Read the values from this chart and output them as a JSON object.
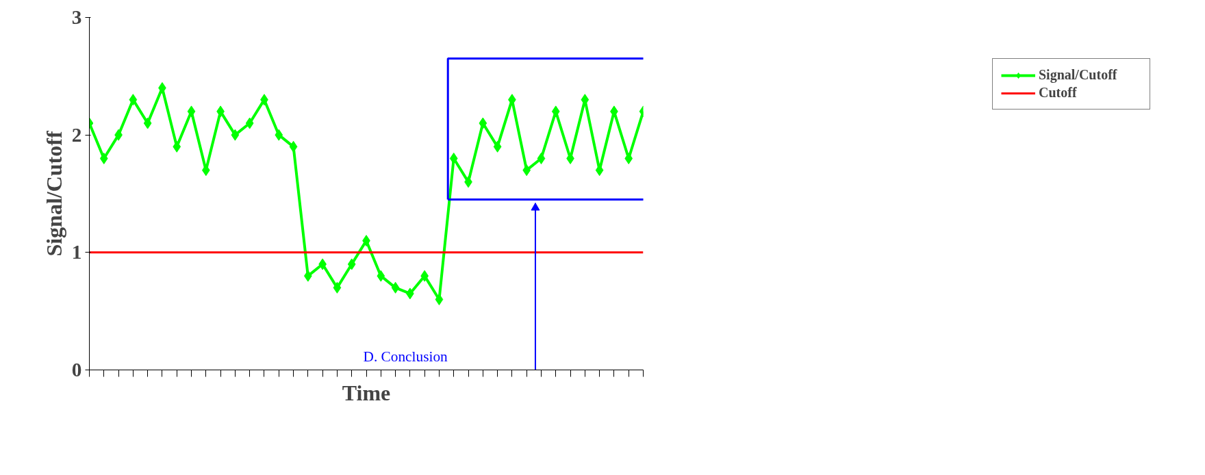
{
  "chart_data": {
    "type": "line",
    "xlabel": "Time",
    "ylabel": "Signal/Cutoff",
    "categories": [
      null,
      null,
      null,
      null,
      null,
      null,
      null,
      null,
      null,
      null,
      null,
      null,
      null,
      null,
      null,
      null,
      null,
      null,
      null,
      null,
      null,
      null,
      null,
      null,
      null,
      null,
      null,
      null,
      null,
      null,
      null,
      null,
      null,
      null,
      null,
      null,
      null,
      null,
      null
    ],
    "series": [
      {
        "name": "Signal/Cutoff",
        "color": "#00ff00",
        "values": [
          2.1,
          1.8,
          2.0,
          2.3,
          2.1,
          2.4,
          1.9,
          2.2,
          1.7,
          2.2,
          2.0,
          2.1,
          2.3,
          2.0,
          1.9,
          0.8,
          0.9,
          0.7,
          0.9,
          1.1,
          0.8,
          0.7,
          0.65,
          0.8,
          0.6,
          1.8,
          1.6,
          2.1,
          1.9,
          2.3,
          1.7,
          1.8,
          2.2,
          1.8,
          2.3,
          1.7,
          2.2,
          1.8,
          2.2
        ]
      }
    ],
    "ylim": [
      0,
      3
    ],
    "yticks": [
      0,
      1,
      2,
      3
    ],
    "grid": false,
    "marker": "diamond",
    "legend": "right",
    "tick_labels": "y",
    "ref_lines": [
      {
        "axis": "y",
        "value": 1,
        "label": "Cutoff",
        "color": "#ff0000"
      }
    ],
    "annotations": [
      "D. Conclusion"
    ]
  }
}
